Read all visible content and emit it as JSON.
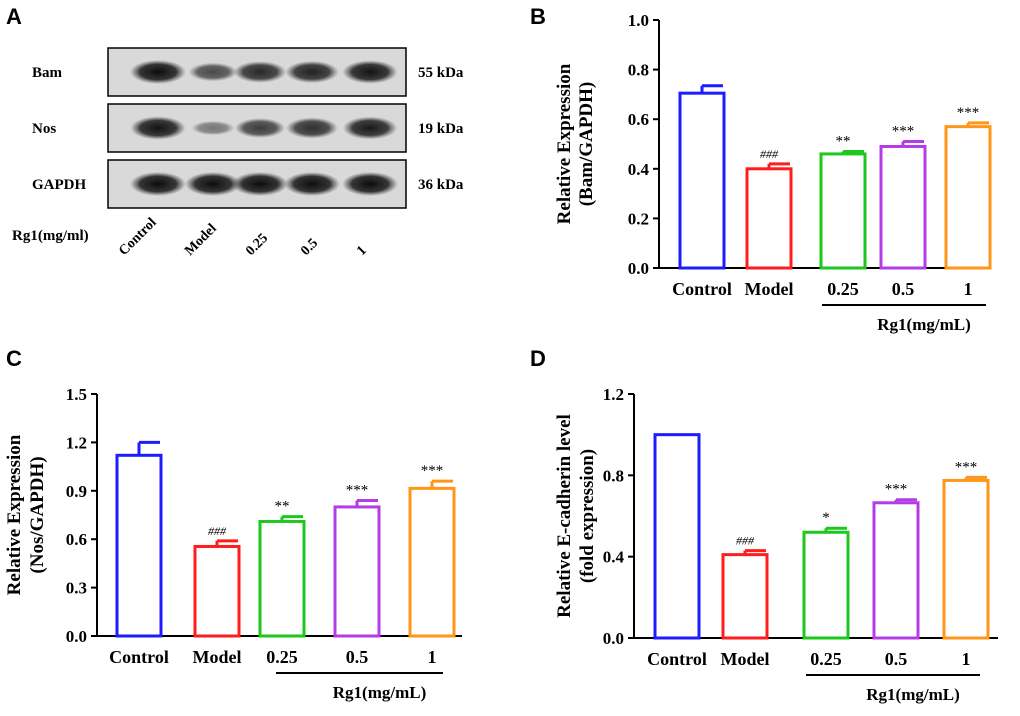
{
  "panels": {
    "A": {
      "letter": "A",
      "blot_rows": [
        {
          "label": "Bam",
          "kda": "55 kDa",
          "intensity": [
            1.0,
            0.55,
            0.8,
            0.85,
            0.95
          ]
        },
        {
          "label": "Nos",
          "kda": "19 kDa",
          "intensity": [
            0.95,
            0.2,
            0.65,
            0.75,
            0.9
          ]
        },
        {
          "label": "GAPDH",
          "kda": "36 kDa",
          "intensity": [
            1.0,
            1.0,
            1.0,
            1.0,
            1.0
          ]
        }
      ],
      "treatment_label": "Rg1(mg/ml)",
      "lanes": [
        "Control",
        "Model",
        "0.25",
        "0.5",
        "1"
      ]
    }
  },
  "chart_data": [
    {
      "letter": "B",
      "type": "bar",
      "categories": [
        "Control",
        "Model",
        "0.25",
        "0.5",
        "1"
      ],
      "values": [
        0.705,
        0.4,
        0.46,
        0.49,
        0.57
      ],
      "errors": [
        0.03,
        0.02,
        0.01,
        0.02,
        0.015
      ],
      "annotations": [
        "",
        "###",
        "**",
        "***",
        "***"
      ],
      "colors": [
        "#1c1cff",
        "#ff1c1c",
        "#1cc81c",
        "#b43ce6",
        "#ff9619"
      ],
      "ylabel_line1": "Relative Expression",
      "ylabel_line2": "(Bam/GAPDH)",
      "ylim": [
        0,
        1.0
      ],
      "yticks": [
        "0.0",
        "0.2",
        "0.4",
        "0.6",
        "0.8",
        "1.0"
      ],
      "ytick_values": [
        0,
        0.2,
        0.4,
        0.6,
        0.8,
        1.0
      ],
      "group_label": "Rg1(mg/mL)"
    },
    {
      "letter": "C",
      "type": "bar",
      "categories": [
        "Control",
        "Model",
        "0.25",
        "0.5",
        "1"
      ],
      "values": [
        1.12,
        0.555,
        0.71,
        0.8,
        0.915
      ],
      "errors": [
        0.08,
        0.035,
        0.03,
        0.04,
        0.045
      ],
      "annotations": [
        "",
        "###",
        "**",
        "***",
        "***"
      ],
      "colors": [
        "#1c1cff",
        "#ff1c1c",
        "#1cc81c",
        "#b43ce6",
        "#ff9619"
      ],
      "ylabel_line1": "Relative Expression",
      "ylabel_line2": "(Nos/GAPDH)",
      "ylim": [
        0,
        1.5
      ],
      "yticks": [
        "0.0",
        "0.3",
        "0.6",
        "0.9",
        "1.2",
        "1.5"
      ],
      "ytick_values": [
        0,
        0.3,
        0.6,
        0.9,
        1.2,
        1.5
      ],
      "group_label": "Rg1(mg/mL)"
    },
    {
      "letter": "D",
      "type": "bar",
      "categories": [
        "Control",
        "Model",
        "0.25",
        "0.5",
        "1"
      ],
      "values": [
        1.0,
        0.41,
        0.52,
        0.665,
        0.775
      ],
      "errors": [
        0.0,
        0.02,
        0.02,
        0.015,
        0.015
      ],
      "annotations": [
        "",
        "###",
        "*",
        "***",
        "***"
      ],
      "colors": [
        "#1c1cff",
        "#ff1c1c",
        "#1cc81c",
        "#b43ce6",
        "#ff9619"
      ],
      "ylabel_line1": "Relative E-cadherin level",
      "ylabel_line2": "(fold expression)",
      "ylim": [
        0,
        1.2
      ],
      "yticks": [
        "0.0",
        "0.4",
        "0.8",
        "1.2"
      ],
      "ytick_values": [
        0,
        0.4,
        0.8,
        1.2
      ],
      "group_label": "Rg1(mg/mL)"
    }
  ]
}
